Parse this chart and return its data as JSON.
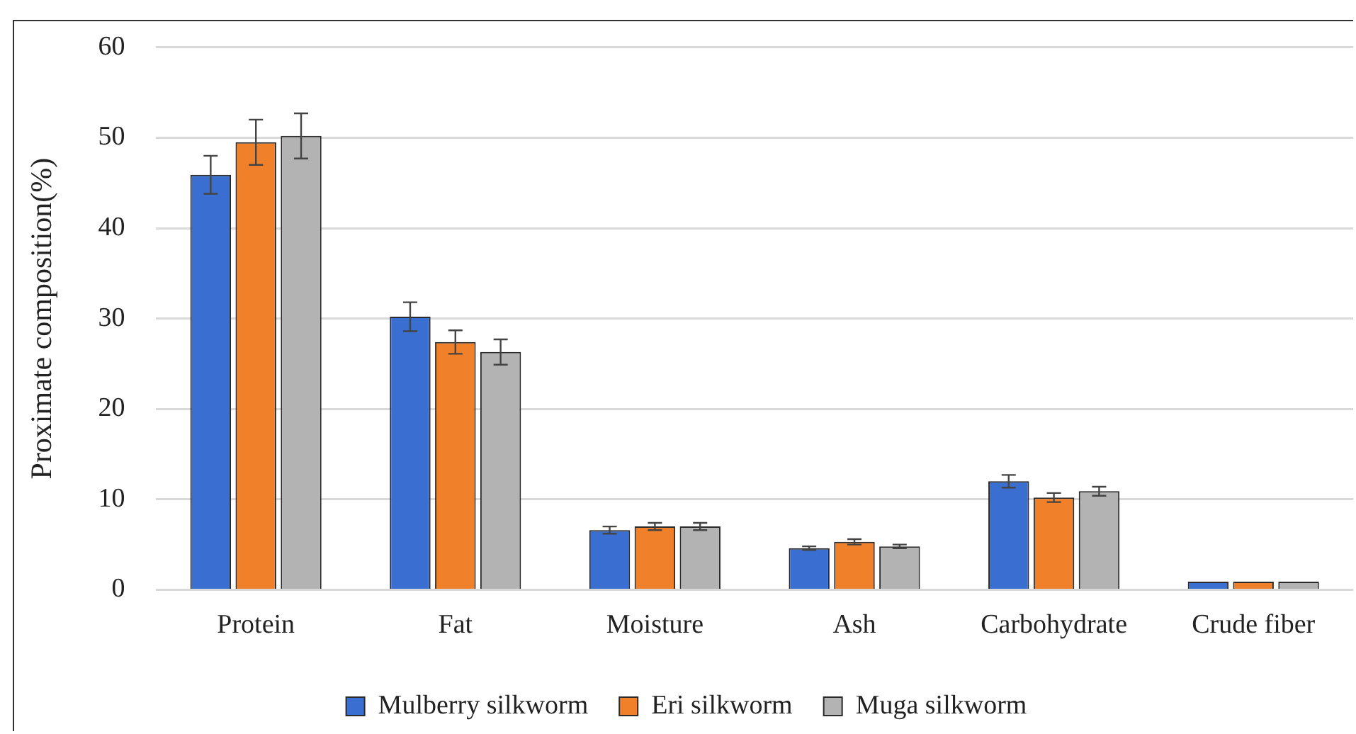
{
  "chart_data": {
    "type": "bar",
    "ylabel": "Proximate composition(%)",
    "categories": [
      "Protein",
      "Fat",
      "Moisture",
      "Ash",
      "Carbohydrate",
      "Crude fiber"
    ],
    "series": [
      {
        "name": "Mulberry silkworm",
        "color": "#3a6fd1",
        "values": [
          45.9,
          30.2,
          6.6,
          4.6,
          12.0,
          0.9
        ],
        "errors": [
          2.1,
          1.6,
          0.4,
          0.2,
          0.7,
          null
        ]
      },
      {
        "name": "Eri silkworm",
        "color": "#f0812a",
        "values": [
          49.5,
          27.4,
          7.0,
          5.3,
          10.2,
          0.9
        ],
        "errors": [
          2.5,
          1.3,
          0.4,
          0.3,
          0.5,
          null
        ]
      },
      {
        "name": "Muga silkworm",
        "color": "#b3b3b3",
        "values": [
          50.2,
          26.3,
          7.0,
          4.8,
          10.9,
          0.9
        ],
        "errors": [
          2.5,
          1.4,
          0.4,
          0.2,
          0.5,
          null
        ]
      }
    ],
    "ylim": [
      0,
      60
    ],
    "yticks": [
      0,
      10,
      20,
      30,
      40,
      50,
      60
    ],
    "grid": "y",
    "legend": "bottom"
  }
}
